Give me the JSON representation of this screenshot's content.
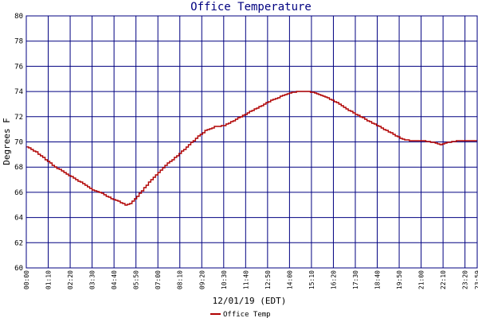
{
  "chart_data": {
    "type": "line",
    "title": "Office Temperature",
    "xlabel": "12/01/19 (EDT)",
    "ylabel": "Degrees F",
    "ylim": [
      60,
      80
    ],
    "yticks": [
      "60",
      "62",
      "64",
      "66",
      "68",
      "70",
      "72",
      "74",
      "76",
      "78",
      "80"
    ],
    "xticks": [
      "00:00",
      "01:10",
      "02:20",
      "03:30",
      "04:40",
      "05:50",
      "07:00",
      "08:10",
      "09:20",
      "10:30",
      "11:40",
      "12:50",
      "14:00",
      "15:10",
      "16:20",
      "17:30",
      "18:40",
      "19:50",
      "21:00",
      "22:10",
      "23:20",
      "23:59"
    ],
    "grid": true,
    "legend": "bottom-left",
    "colors": {
      "grid": "#000080",
      "line": "#b00000",
      "title": "#000080"
    },
    "series": [
      {
        "name": "Office Temp",
        "x_minutes": [
          0,
          30,
          60,
          90,
          120,
          150,
          180,
          210,
          240,
          270,
          300,
          315,
          330,
          360,
          390,
          420,
          450,
          480,
          510,
          540,
          570,
          600,
          630,
          660,
          690,
          720,
          750,
          780,
          810,
          840,
          870,
          900,
          920,
          940,
          960,
          990,
          1020,
          1050,
          1080,
          1110,
          1140,
          1170,
          1200,
          1230,
          1260,
          1290,
          1320,
          1350,
          1380,
          1400,
          1420,
          1439
        ],
        "values": [
          69.6,
          69.2,
          68.6,
          68.0,
          67.6,
          67.1,
          66.7,
          66.2,
          65.9,
          65.5,
          65.2,
          65.0,
          65.1,
          65.9,
          66.8,
          67.6,
          68.3,
          68.9,
          69.6,
          70.3,
          70.9,
          71.2,
          71.3,
          71.7,
          72.1,
          72.5,
          72.9,
          73.3,
          73.6,
          73.9,
          74.0,
          74.0,
          73.9,
          73.7,
          73.5,
          73.1,
          72.6,
          72.2,
          71.8,
          71.4,
          71.0,
          70.6,
          70.2,
          70.1,
          70.1,
          70.0,
          69.8,
          70.0,
          70.1,
          70.1,
          70.1,
          70.1
        ]
      }
    ]
  }
}
